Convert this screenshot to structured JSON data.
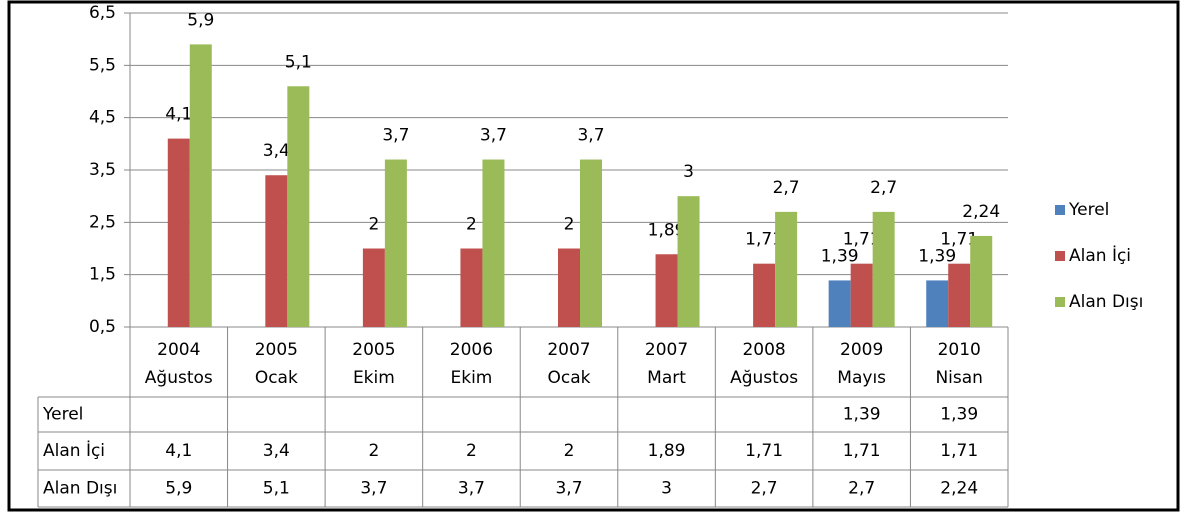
{
  "chart_data": {
    "type": "bar",
    "categories": [
      [
        "2004",
        "Ağustos"
      ],
      [
        "2005",
        "Ocak"
      ],
      [
        "2005",
        "Ekim"
      ],
      [
        "2006",
        "Ekim"
      ],
      [
        "2007",
        "Ocak"
      ],
      [
        "2007",
        "Mart"
      ],
      [
        "2008",
        "Ağustos"
      ],
      [
        "2009",
        "Mayıs"
      ],
      [
        "2010",
        "Nisan"
      ]
    ],
    "series": [
      {
        "name": "Yerel",
        "color": "#4f81bd",
        "values": [
          null,
          null,
          null,
          null,
          null,
          null,
          null,
          1.39,
          1.39
        ],
        "value_labels": [
          null,
          null,
          null,
          null,
          null,
          null,
          null,
          "1,39",
          "1,39"
        ]
      },
      {
        "name": "Alan İçi",
        "color": "#c0504d",
        "values": [
          4.1,
          3.4,
          2,
          2,
          2,
          1.89,
          1.71,
          1.71,
          1.71
        ],
        "value_labels": [
          "4,1",
          "3,4",
          "2",
          "2",
          "2",
          "1,89",
          "1,71",
          "1,71",
          "1,71"
        ]
      },
      {
        "name": "Alan Dışı",
        "color": "#9bbb59",
        "values": [
          5.9,
          5.1,
          3.7,
          3.7,
          3.7,
          3,
          2.7,
          2.7,
          2.24
        ],
        "value_labels": [
          "5,9",
          "5,1",
          "3,7",
          "3,7",
          "3,7",
          "3",
          "2,7",
          "2,7",
          "2,24"
        ]
      }
    ],
    "ylim": [
      0.5,
      6.5
    ],
    "yticks": [
      {
        "value": 0.5,
        "label": "0,5"
      },
      {
        "value": 1.5,
        "label": "1,5"
      },
      {
        "value": 2.5,
        "label": "2,5"
      },
      {
        "value": 3.5,
        "label": "3,5"
      },
      {
        "value": 4.5,
        "label": "4,5"
      },
      {
        "value": 5.5,
        "label": "5,5"
      },
      {
        "value": 6.5,
        "label": "6,5"
      }
    ],
    "grid": true,
    "legend": "right",
    "data_table": true
  }
}
